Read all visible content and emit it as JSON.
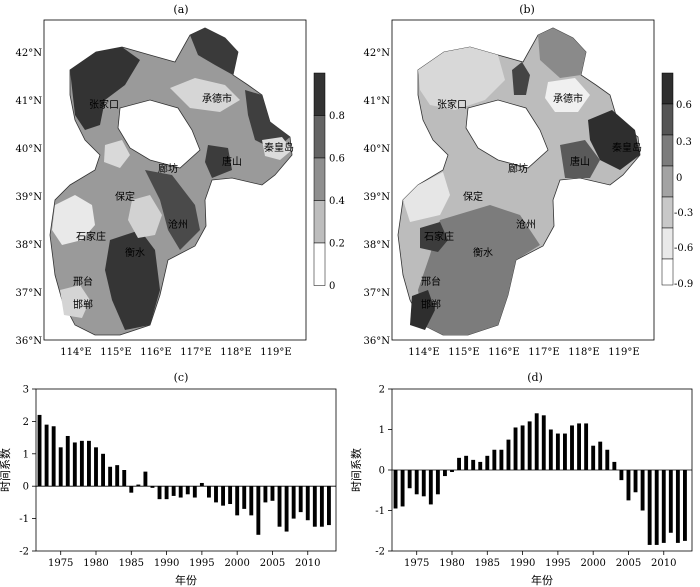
{
  "panels": {
    "a": {
      "label": "(a)",
      "lat_ticks": [
        "42°N",
        "41°N",
        "40°N",
        "39°N",
        "38°N",
        "37°N",
        "36°N"
      ],
      "lon_ticks": [
        "114°E",
        "115°E",
        "116°E",
        "117°E",
        "118°E",
        "119°E"
      ],
      "cities": [
        "张家口",
        "承德市",
        "秦皇岛",
        "唐山",
        "廊坊",
        "保定",
        "沧州",
        "石家庄",
        "衡水",
        "邢台",
        "邯郸"
      ],
      "colorbar_ticks": [
        "0.8",
        "0.6",
        "0.4",
        "0.2",
        "0"
      ],
      "colorbar_colors": [
        "#ffffff",
        "#e9e9e9",
        "#bdbdbd",
        "#8f8f8f",
        "#646464",
        "#333333"
      ]
    },
    "b": {
      "label": "(b)",
      "lat_ticks": [
        "42°N",
        "41°N",
        "40°N",
        "39°N",
        "38°N",
        "37°N",
        "36°N"
      ],
      "lon_ticks": [
        "114°E",
        "115°E",
        "116°E",
        "117°E",
        "118°E",
        "119°E"
      ],
      "cities": [
        "张家口",
        "承德市",
        "秦皇岛",
        "唐山",
        "廊坊",
        "保定",
        "沧州",
        "石家庄",
        "衡水",
        "邢台",
        "邯郸"
      ],
      "colorbar_ticks": [
        "0.6",
        "0.3",
        "0",
        "-0.3",
        "-0.6",
        "-0.9"
      ],
      "colorbar_colors": [
        "#ffffff",
        "#e9e9e9",
        "#c8c8c8",
        "#a3a3a3",
        "#7c7c7c",
        "#555555",
        "#2e2e2e"
      ]
    },
    "c": {
      "label": "(c)",
      "xlabel": "年份",
      "ylabel": "时间系数"
    },
    "d": {
      "label": "(d)",
      "xlabel": "年份",
      "ylabel": "时间系数"
    }
  },
  "chart_data": [
    {
      "type": "bar",
      "panel": "(c)",
      "xlabel": "年份",
      "ylabel": "时间系数",
      "ylim": [
        -2,
        3
      ],
      "yticks": [
        3,
        2,
        1,
        0,
        -1,
        -2
      ],
      "xticks": [
        1975,
        1980,
        1985,
        1990,
        1995,
        2000,
        2005,
        2010
      ],
      "x": [
        1972,
        1973,
        1974,
        1975,
        1976,
        1977,
        1978,
        1979,
        1980,
        1981,
        1982,
        1983,
        1984,
        1985,
        1986,
        1987,
        1988,
        1989,
        1990,
        1991,
        1992,
        1993,
        1994,
        1995,
        1996,
        1997,
        1998,
        1999,
        2000,
        2001,
        2002,
        2003,
        2004,
        2005,
        2006,
        2007,
        2008,
        2009,
        2010,
        2011,
        2012,
        2013
      ],
      "values": [
        2.2,
        1.9,
        1.85,
        1.2,
        1.55,
        1.35,
        1.4,
        1.4,
        1.2,
        1.0,
        0.6,
        0.65,
        0.5,
        -0.2,
        0.05,
        0.45,
        -0.05,
        -0.4,
        -0.4,
        -0.3,
        -0.35,
        -0.25,
        -0.35,
        0.1,
        -0.35,
        -0.5,
        -0.6,
        -0.55,
        -0.9,
        -0.7,
        -0.9,
        -1.5,
        -0.5,
        -0.45,
        -1.25,
        -1.4,
        -1.0,
        -0.8,
        -1.05,
        -1.25,
        -1.25,
        -1.2
      ]
    },
    {
      "type": "bar",
      "panel": "(d)",
      "xlabel": "年份",
      "ylabel": "时间系数",
      "ylim": [
        -2,
        2
      ],
      "yticks": [
        2,
        1,
        0,
        -1,
        -2
      ],
      "xticks": [
        1975,
        1980,
        1985,
        1990,
        1995,
        2000,
        2005,
        2010
      ],
      "x": [
        1972,
        1973,
        1974,
        1975,
        1976,
        1977,
        1978,
        1979,
        1980,
        1981,
        1982,
        1983,
        1984,
        1985,
        1986,
        1987,
        1988,
        1989,
        1990,
        1991,
        1992,
        1993,
        1994,
        1995,
        1996,
        1997,
        1998,
        1999,
        2000,
        2001,
        2002,
        2003,
        2004,
        2005,
        2006,
        2007,
        2008,
        2009,
        2010,
        2011,
        2012,
        2013
      ],
      "values": [
        -0.95,
        -0.9,
        -0.45,
        -0.6,
        -0.65,
        -0.85,
        -0.6,
        -0.15,
        -0.05,
        0.3,
        0.35,
        0.25,
        0.2,
        0.35,
        0.5,
        0.5,
        0.75,
        1.05,
        1.1,
        1.2,
        1.4,
        1.35,
        1.0,
        0.9,
        0.9,
        1.1,
        1.15,
        1.15,
        0.6,
        0.7,
        0.5,
        0.2,
        -0.25,
        -0.75,
        -0.55,
        -1.0,
        -1.85,
        -1.85,
        -1.8,
        -1.55,
        -1.8,
        -1.75
      ]
    }
  ]
}
